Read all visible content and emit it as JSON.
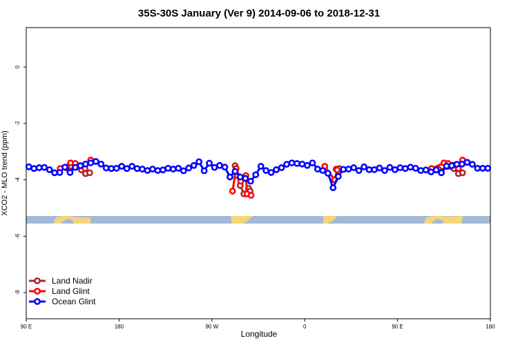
{
  "chart_data": {
    "type": "line",
    "title": "35S-30S January (Ver 9)   2014-09-06 to 2018-12-31",
    "x_label": "Longitude",
    "y_label": "XCO2 - MLO trend (ppm)",
    "xlim": [
      90,
      540
    ],
    "ylim": [
      -8.93,
      1.4
    ],
    "xticks": [
      {
        "value": 90,
        "label": "90 E"
      },
      {
        "value": 180,
        "label": "180"
      },
      {
        "value": 270,
        "label": "90 W"
      },
      {
        "value": 360,
        "label": "0"
      },
      {
        "value": 450,
        "label": "90 E"
      },
      {
        "value": 540,
        "label": "180"
      }
    ],
    "yticks": [
      0,
      -2,
      -4,
      -6,
      -8
    ],
    "legend": "bottom-left",
    "series": [
      {
        "name": "Land Nadir",
        "color": "#a52a2a",
        "x": [
          129,
          143.5,
          147.5,
          151.5,
          null,
          292.5,
          294.5,
          297.5,
          301,
          305.5,
          307,
          null,
          390.5,
          393.5,
          null,
          489.5,
          504.5,
          509,
          513
        ],
        "values": [
          -3.58,
          -3.65,
          -3.78,
          -3.75,
          null,
          -3.5,
          -3.85,
          -4.2,
          -4.5,
          -4.3,
          -4.4,
          null,
          -3.62,
          -3.6,
          null,
          -3.62,
          -3.6,
          -3.78,
          -3.75
        ]
      },
      {
        "name": "Land Glint",
        "color": "#ff0000",
        "x": [
          123,
          133,
          137.5,
          142,
          147,
          152.5,
          null,
          290,
          293.5,
          298,
          303,
          304,
          308,
          null,
          379.5,
          389,
          391.5,
          null,
          483,
          495,
          499,
          504,
          509,
          513
        ],
        "values": [
          -3.6,
          -3.4,
          -3.42,
          -3.5,
          -3.6,
          -3.3,
          null,
          -4.4,
          -3.6,
          -4.05,
          -3.85,
          -4.5,
          -4.55,
          null,
          -3.52,
          -4.0,
          -3.65,
          null,
          -3.6,
          -3.4,
          -3.42,
          -3.48,
          -3.6,
          -3.3
        ]
      },
      {
        "name": "Ocean Glint",
        "color": "#0000ff",
        "x": [
          92.5,
          97.5,
          102.5,
          107.5,
          112.5,
          117.5,
          122.5,
          127.5,
          132.5,
          137.5,
          142.5,
          147.5,
          152.5,
          157.5,
          162.5,
          167.5,
          172.5,
          177.5,
          182.5,
          187.5,
          192.5,
          197.5,
          202.5,
          207.5,
          212.5,
          217.5,
          222.5,
          227.5,
          232.5,
          237.5,
          242.5,
          247.5,
          252.5,
          257.5,
          262.5,
          267.5,
          272.5,
          277.5,
          282.5,
          287.5,
          292.5,
          297.5,
          302.5,
          307.5,
          312.5,
          317.5,
          322.5,
          327.5,
          332.5,
          337.5,
          342.5,
          347.5,
          352.5,
          357.5,
          362.5,
          367.5,
          372.5,
          377.5,
          382.5,
          387.5,
          392.5,
          397.5,
          402.5,
          407.5,
          412.5,
          417.5,
          422.5,
          427.5,
          432.5,
          437.5,
          442.5,
          447.5,
          452.5,
          457.5,
          462.5,
          467.5,
          472.5,
          477.5,
          482.5,
          487.5,
          492.5,
          497.5,
          502.5,
          507.5,
          512.5,
          517.5,
          522.5,
          527.5,
          532.5,
          537.5
        ],
        "values": [
          -3.54,
          -3.6,
          -3.57,
          -3.56,
          -3.64,
          -3.75,
          -3.74,
          -3.55,
          -3.74,
          -3.56,
          -3.5,
          -3.44,
          -3.4,
          -3.35,
          -3.44,
          -3.58,
          -3.6,
          -3.59,
          -3.52,
          -3.6,
          -3.52,
          -3.6,
          -3.62,
          -3.67,
          -3.62,
          -3.67,
          -3.65,
          -3.59,
          -3.62,
          -3.59,
          -3.68,
          -3.58,
          -3.49,
          -3.36,
          -3.68,
          -3.41,
          -3.56,
          -3.49,
          -3.55,
          -3.9,
          -3.7,
          -3.9,
          -3.95,
          -4.05,
          -3.82,
          -3.52,
          -3.67,
          -3.74,
          -3.64,
          -3.57,
          -3.45,
          -3.4,
          -3.42,
          -3.44,
          -3.49,
          -3.4,
          -3.62,
          -3.67,
          -3.77,
          -4.28,
          -3.88,
          -3.63,
          -3.62,
          -3.57,
          -3.67,
          -3.54,
          -3.64,
          -3.64,
          -3.58,
          -3.67,
          -3.56,
          -3.64,
          -3.57,
          -3.6,
          -3.55,
          -3.59,
          -3.67,
          -3.65,
          -3.72,
          -3.65,
          -3.75,
          -3.51,
          -3.5,
          -3.45,
          -3.44,
          -3.38,
          -3.45,
          -3.59,
          -3.59,
          -3.59
        ]
      }
    ]
  }
}
